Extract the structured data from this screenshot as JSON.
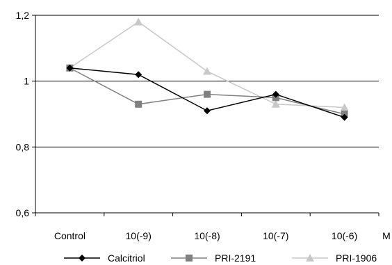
{
  "chart_data": {
    "type": "line",
    "categories": [
      "Control",
      "10(-9)",
      "10(-8)",
      "10(-7)",
      "10(-6)"
    ],
    "x_unit": "M",
    "ylim": [
      0.6,
      1.2
    ],
    "yticks": [
      "0,6",
      "0,8",
      "1",
      "1,2"
    ],
    "ytick_values": [
      0.6,
      0.8,
      1.0,
      1.2
    ],
    "grid": true,
    "legend_position": "bottom",
    "series": [
      {
        "name": "Calcitriol",
        "marker": "diamond",
        "color": "#000000",
        "values": [
          1.04,
          1.02,
          0.91,
          0.96,
          0.89
        ]
      },
      {
        "name": "PRI-2191",
        "marker": "square",
        "color": "#808080",
        "values": [
          1.04,
          0.93,
          0.96,
          0.95,
          0.9
        ]
      },
      {
        "name": "PRI-1906",
        "marker": "triangle",
        "color": "#c8c8c8",
        "values": [
          1.04,
          1.18,
          1.03,
          0.93,
          0.92
        ]
      }
    ]
  }
}
